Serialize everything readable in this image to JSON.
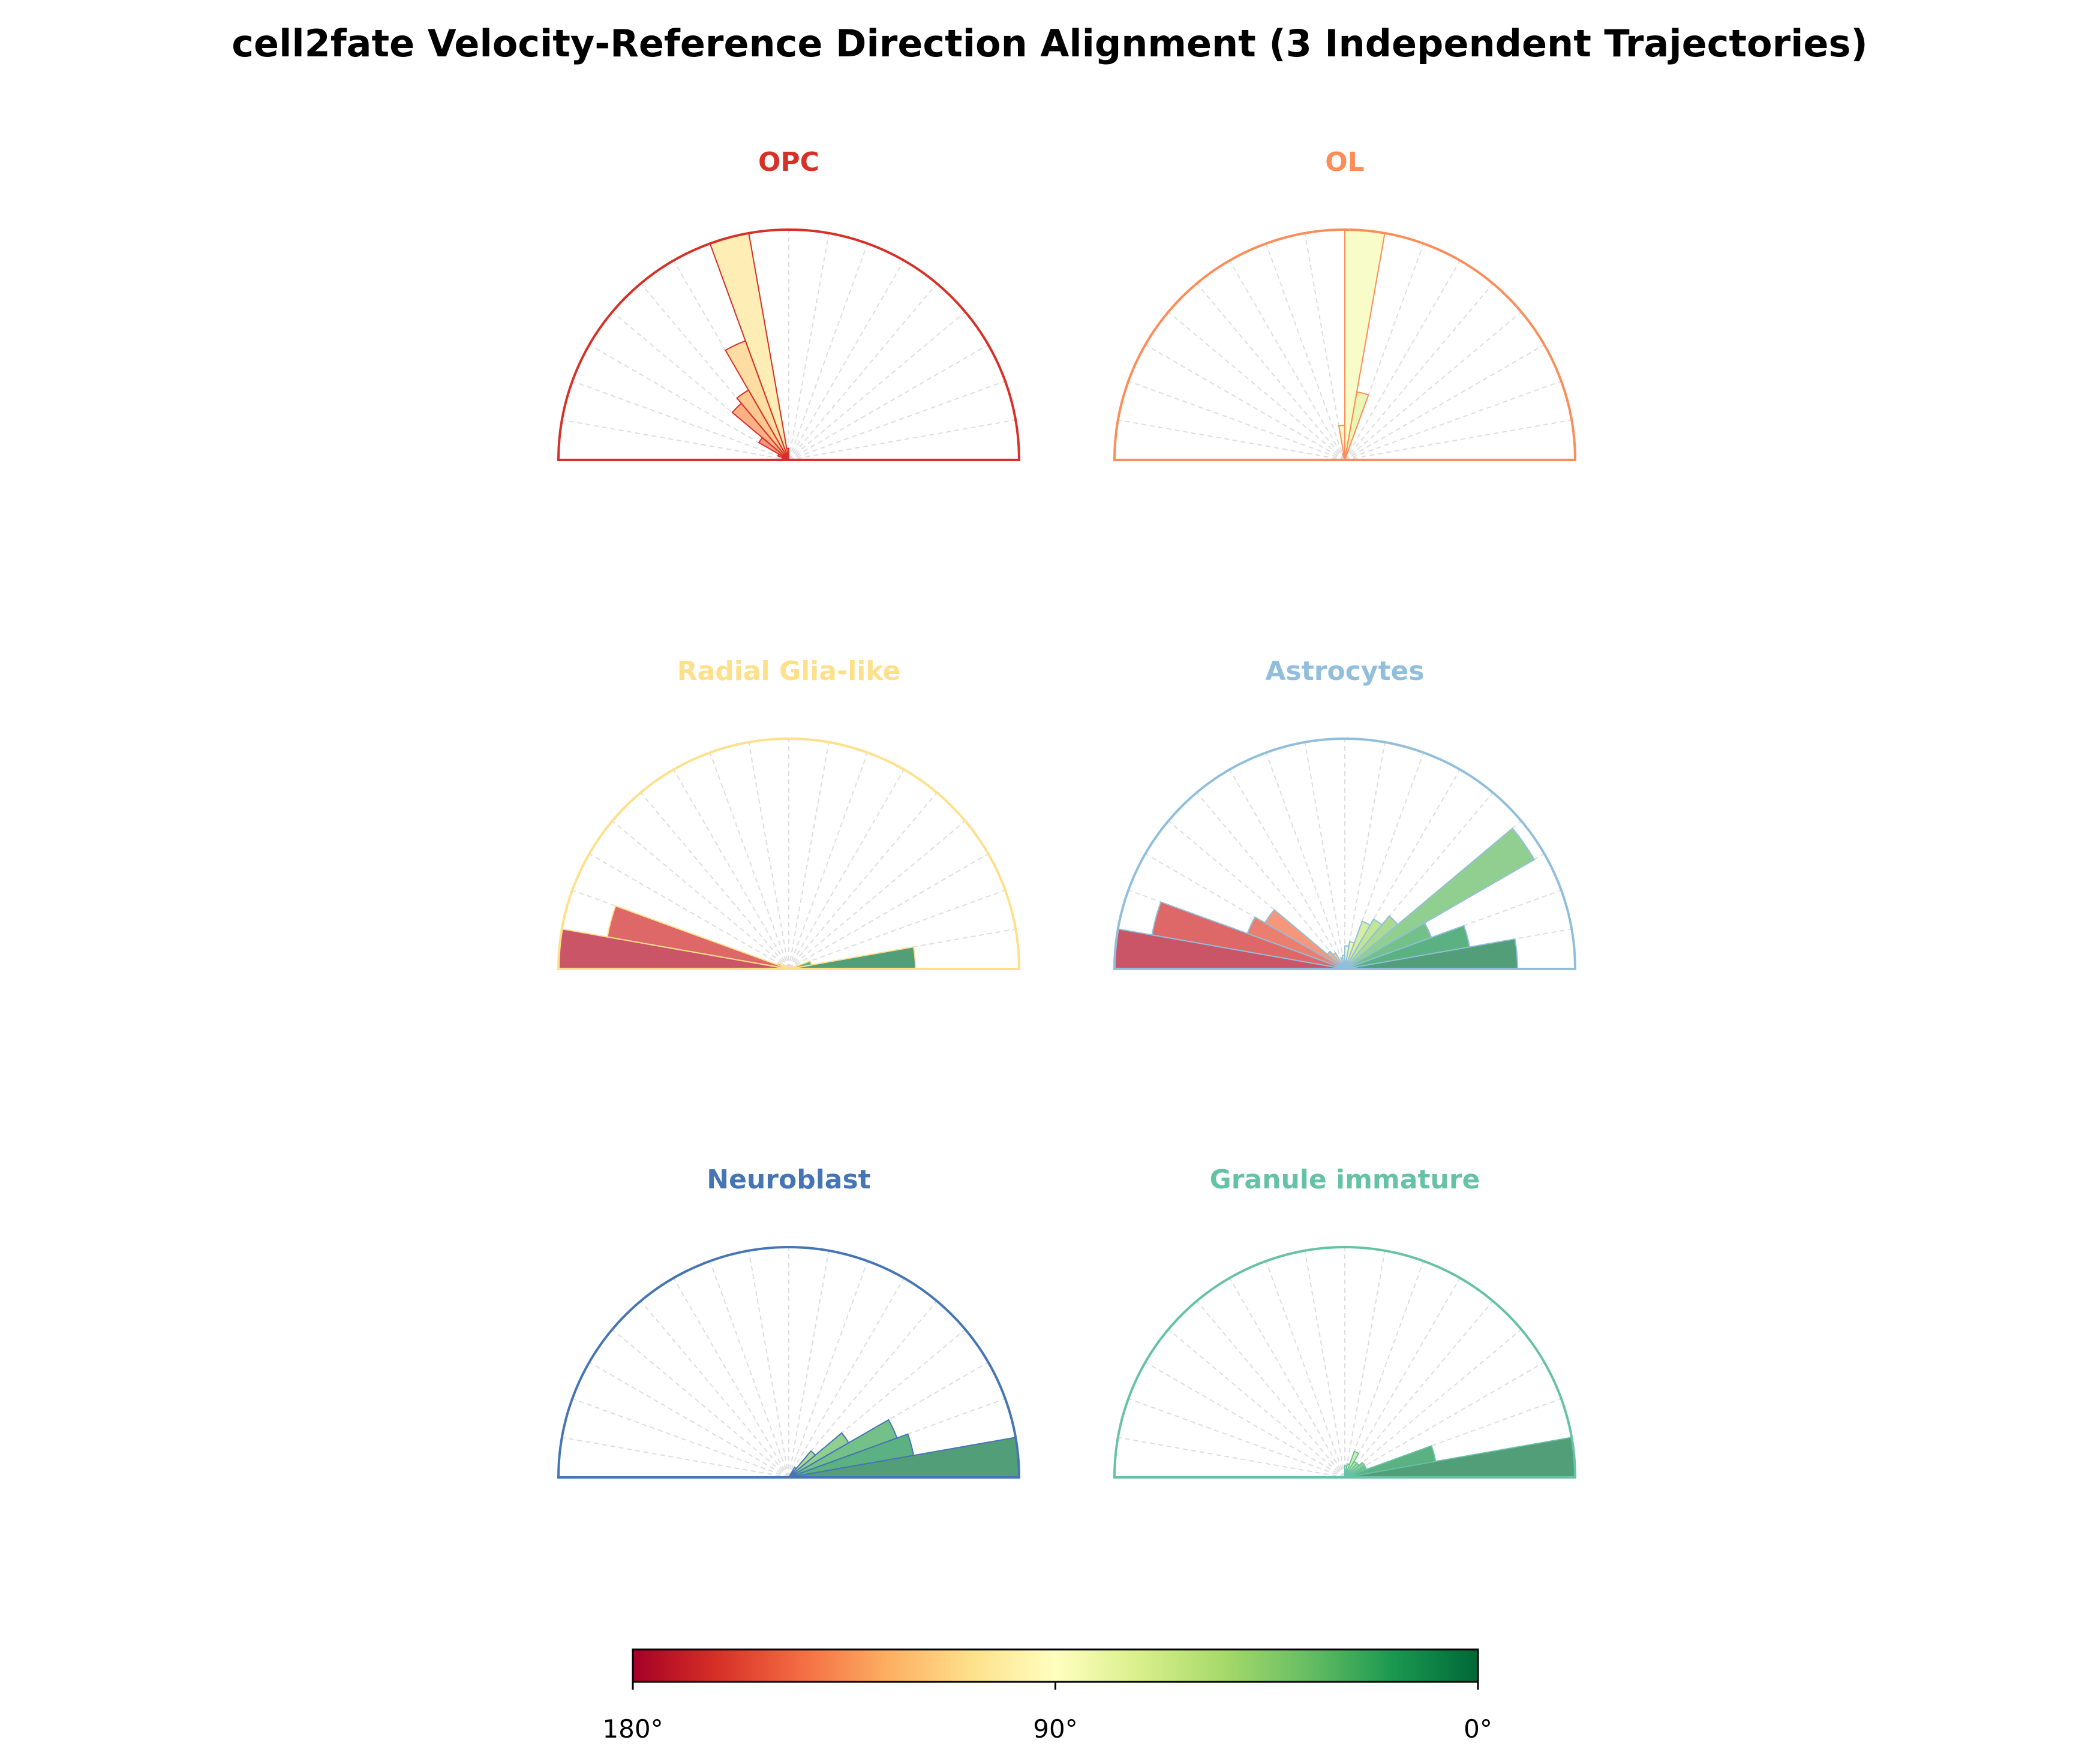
{
  "chart_data": {
    "type": "polar-histogram",
    "title": "cell2fate Velocity-Reference Direction Alignment (3 Independent Trajectories)",
    "bin_width_deg": 10,
    "bin_edges_deg": [
      0,
      10,
      20,
      30,
      40,
      50,
      60,
      70,
      80,
      90,
      100,
      110,
      120,
      130,
      140,
      150,
      160,
      170,
      180
    ],
    "value_scale": "normalized frequency (max = 1)",
    "panels": [
      {
        "name": "OPC",
        "color": "#d73027",
        "values": [
          0,
          0,
          0,
          0,
          0,
          0,
          0,
          0,
          0,
          0.05,
          1.0,
          0.55,
          0.35,
          0.32,
          0.15,
          0.05,
          0.03,
          0
        ]
      },
      {
        "name": "OL",
        "color": "#fc8d59",
        "values": [
          0,
          0,
          0,
          0,
          0,
          0,
          0,
          0.3,
          1.0,
          0.15,
          0.03,
          0,
          0,
          0,
          0,
          0,
          0,
          0
        ]
      },
      {
        "name": "Radial Glia-like",
        "color": "#fee08b",
        "values": [
          0.55,
          0.1,
          0,
          0.02,
          0,
          0,
          0,
          0,
          0,
          0,
          0,
          0,
          0,
          0,
          0.03,
          0.05,
          0.8,
          1.0
        ]
      },
      {
        "name": "Astrocytes",
        "color": "#91bfdb",
        "values": [
          0.75,
          0.55,
          0.4,
          0.95,
          0.3,
          0.25,
          0.22,
          0.12,
          0.1,
          0.06,
          0.05,
          0,
          0.08,
          0.1,
          0.4,
          0.45,
          0.85,
          1.0
        ]
      },
      {
        "name": "Neuroblast",
        "color": "#4575b4",
        "values": [
          1.0,
          0.55,
          0.5,
          0.3,
          0.15,
          0.05,
          0,
          0,
          0,
          0,
          0,
          0,
          0,
          0,
          0,
          0,
          0,
          0
        ]
      },
      {
        "name": "Granule immature",
        "color": "#66c2a5",
        "values": [
          1.0,
          0.4,
          0.1,
          0.1,
          0.08,
          0.08,
          0.12,
          0.06,
          0.05,
          0,
          0,
          0,
          0,
          0,
          0,
          0,
          0,
          0
        ]
      }
    ],
    "colorbar": {
      "colormap": "RdYlGn",
      "range_deg": [
        180,
        0
      ],
      "tick_labels": [
        "180°",
        "90°",
        "0°"
      ]
    }
  }
}
